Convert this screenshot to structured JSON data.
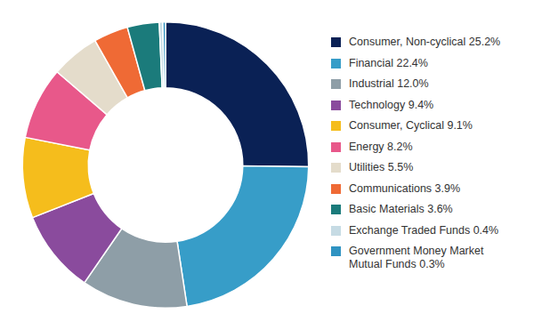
{
  "chart_data": {
    "type": "doughnut",
    "categories": [
      "Consumer, Non-cyclical 25.2%",
      "Financial 22.4%",
      "Industrial 12.0%",
      "Technology 9.4%",
      "Consumer, Cyclical 9.1%",
      "Energy 8.2%",
      "Utilities 5.5%",
      "Communications 3.9%",
      "Basic Materials 3.6%",
      "Exchange Traded Funds 0.4%",
      "Government Money Market Mutual Funds 0.3%"
    ],
    "values": [
      25.2,
      22.4,
      12.0,
      9.4,
      9.1,
      8.2,
      5.5,
      3.9,
      3.6,
      0.4,
      0.3
    ],
    "colors": [
      "#0a2155",
      "#379dc8",
      "#8e9ea7",
      "#8a4b9d",
      "#f5bd1c",
      "#e8588a",
      "#e4dccb",
      "#ef6a35",
      "#1b7b7b",
      "#c6dbe4",
      "#2f93c2"
    ],
    "legend": "right"
  }
}
